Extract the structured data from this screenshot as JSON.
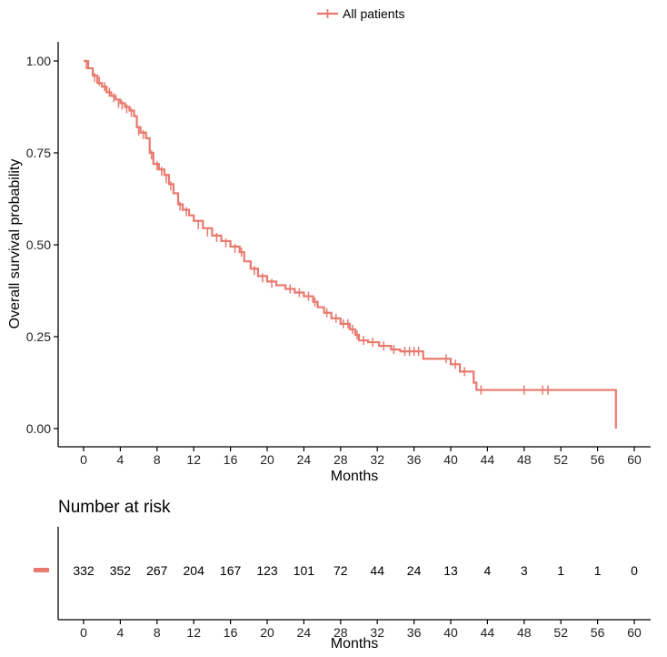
{
  "chart_data": {
    "type": "line",
    "subtype": "kaplan-meier",
    "legend": {
      "label": "All patients",
      "position": "top-center"
    },
    "color": "#e8796e",
    "xlabel": "Months",
    "ylabel": "Overall survival probability",
    "xlim": [
      -2,
      62
    ],
    "ylim": [
      0,
      1.0
    ],
    "xticks": [
      0,
      4,
      8,
      12,
      16,
      20,
      24,
      28,
      32,
      36,
      40,
      44,
      48,
      52,
      56,
      60
    ],
    "xtick_labels": [
      "0",
      "4",
      "8",
      "12",
      "16",
      "20",
      "24",
      "28",
      "32",
      "36",
      "40",
      "44",
      "48",
      "52",
      "56",
      "60"
    ],
    "yticks": [
      0.0,
      0.25,
      0.5,
      0.75,
      1.0
    ],
    "ytick_labels": [
      "0.00",
      "0.25",
      "0.50",
      "0.75",
      "1.00"
    ],
    "survival_steps": [
      [
        0,
        1.0
      ],
      [
        0.5,
        0.98
      ],
      [
        1,
        0.96
      ],
      [
        1.5,
        0.94
      ],
      [
        2,
        0.93
      ],
      [
        2.5,
        0.915
      ],
      [
        3,
        0.905
      ],
      [
        3.5,
        0.895
      ],
      [
        4,
        0.885
      ],
      [
        4.5,
        0.875
      ],
      [
        5,
        0.865
      ],
      [
        5.5,
        0.85
      ],
      [
        5.8,
        0.82
      ],
      [
        6.2,
        0.805
      ],
      [
        6.8,
        0.79
      ],
      [
        7.2,
        0.75
      ],
      [
        7.6,
        0.72
      ],
      [
        8.2,
        0.705
      ],
      [
        8.8,
        0.69
      ],
      [
        9.3,
        0.665
      ],
      [
        9.8,
        0.64
      ],
      [
        10.3,
        0.61
      ],
      [
        10.8,
        0.595
      ],
      [
        11.5,
        0.58
      ],
      [
        12,
        0.565
      ],
      [
        13,
        0.545
      ],
      [
        14,
        0.525
      ],
      [
        15,
        0.51
      ],
      [
        16,
        0.495
      ],
      [
        17,
        0.48
      ],
      [
        17.5,
        0.455
      ],
      [
        18.2,
        0.435
      ],
      [
        19,
        0.415
      ],
      [
        20,
        0.4
      ],
      [
        21,
        0.39
      ],
      [
        22,
        0.38
      ],
      [
        23,
        0.37
      ],
      [
        24,
        0.36
      ],
      [
        25,
        0.345
      ],
      [
        25.5,
        0.33
      ],
      [
        26.2,
        0.315
      ],
      [
        27,
        0.3
      ],
      [
        28,
        0.285
      ],
      [
        29,
        0.27
      ],
      [
        29.6,
        0.255
      ],
      [
        30,
        0.24
      ],
      [
        31,
        0.235
      ],
      [
        32.2,
        0.225
      ],
      [
        33.5,
        0.215
      ],
      [
        34.5,
        0.21
      ],
      [
        37,
        0.19
      ],
      [
        40,
        0.175
      ],
      [
        41,
        0.155
      ],
      [
        42.5,
        0.125
      ],
      [
        42.8,
        0.105
      ],
      [
        58,
        0.105
      ],
      [
        58,
        0.0
      ]
    ],
    "censor_marks": [
      [
        0.3,
        0.99
      ],
      [
        1.2,
        0.955
      ],
      [
        1.7,
        0.945
      ],
      [
        2.3,
        0.93
      ],
      [
        2.8,
        0.915
      ],
      [
        3.3,
        0.9
      ],
      [
        3.8,
        0.885
      ],
      [
        4.2,
        0.88
      ],
      [
        4.7,
        0.87
      ],
      [
        5.2,
        0.86
      ],
      [
        6,
        0.81
      ],
      [
        6.5,
        0.8
      ],
      [
        7.4,
        0.745
      ],
      [
        8,
        0.715
      ],
      [
        8.5,
        0.7
      ],
      [
        9,
        0.68
      ],
      [
        9.5,
        0.66
      ],
      [
        10.5,
        0.605
      ],
      [
        11.2,
        0.59
      ],
      [
        12.5,
        0.555
      ],
      [
        13.5,
        0.535
      ],
      [
        14.5,
        0.52
      ],
      [
        15.5,
        0.505
      ],
      [
        16.5,
        0.49
      ],
      [
        17.2,
        0.48
      ],
      [
        18.6,
        0.43
      ],
      [
        19.5,
        0.41
      ],
      [
        20.5,
        0.395
      ],
      [
        22.5,
        0.38
      ],
      [
        23.5,
        0.37
      ],
      [
        24.5,
        0.36
      ],
      [
        25.2,
        0.345
      ],
      [
        26.5,
        0.315
      ],
      [
        27.5,
        0.3
      ],
      [
        28.3,
        0.285
      ],
      [
        28.8,
        0.285
      ],
      [
        29.3,
        0.27
      ],
      [
        29.8,
        0.255
      ],
      [
        30.5,
        0.24
      ],
      [
        31.5,
        0.235
      ],
      [
        32.7,
        0.225
      ],
      [
        33.8,
        0.215
      ],
      [
        35,
        0.21
      ],
      [
        35.5,
        0.21
      ],
      [
        36,
        0.21
      ],
      [
        36.5,
        0.21
      ],
      [
        39.5,
        0.19
      ],
      [
        40.5,
        0.175
      ],
      [
        41.5,
        0.155
      ],
      [
        43.3,
        0.105
      ],
      [
        48,
        0.105
      ],
      [
        50,
        0.105
      ],
      [
        50.6,
        0.105
      ]
    ],
    "risk_table": {
      "title": "Number at risk",
      "xlabel": "Months",
      "times": [
        0,
        4,
        8,
        12,
        16,
        20,
        24,
        28,
        32,
        36,
        40,
        44,
        48,
        52,
        56,
        60
      ],
      "counts": [
        "332",
        "352",
        "267",
        "204",
        "167",
        "123",
        "101",
        "72",
        "44",
        "24",
        "13",
        "4",
        "3",
        "1",
        "1",
        "0"
      ]
    }
  }
}
